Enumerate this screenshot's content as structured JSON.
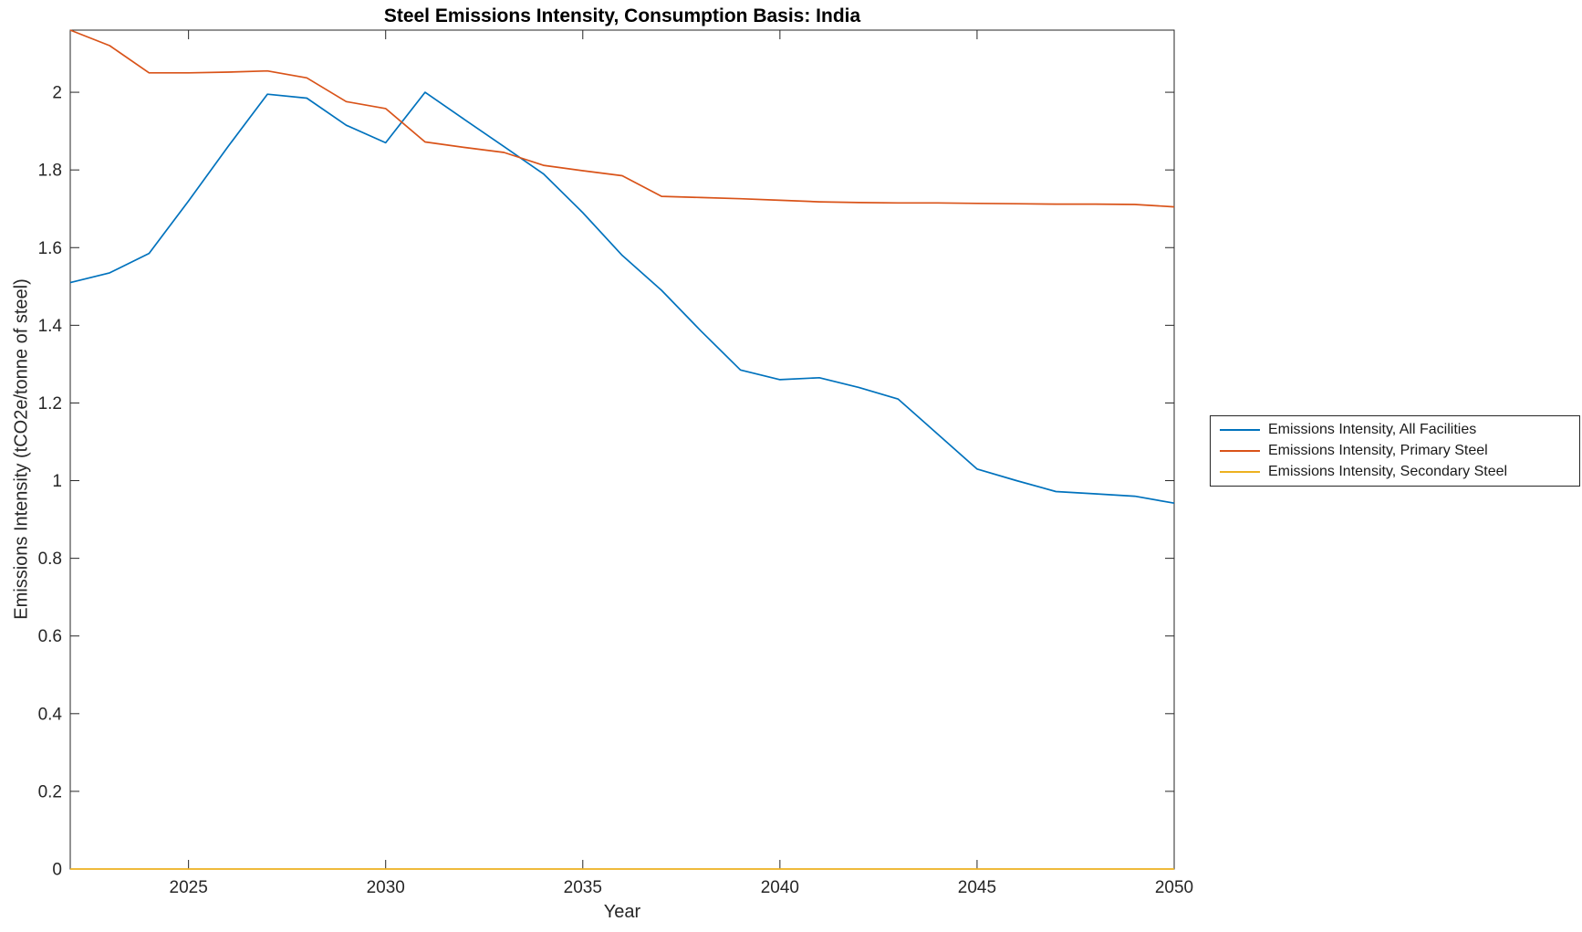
{
  "title": "Steel Emissions Intensity, Consumption Basis: India",
  "chart_data": {
    "type": "line",
    "title": "Steel Emissions Intensity, Consumption Basis: India",
    "xlabel": "Year",
    "ylabel": "Emissions Intensity (tCO2e/tonne of steel)",
    "xlim": [
      2022,
      2050
    ],
    "ylim": [
      0,
      2.16
    ],
    "xticks": [
      2025,
      2030,
      2035,
      2040,
      2045,
      2050
    ],
    "yticks": [
      0,
      0.2,
      0.4,
      0.6,
      0.8,
      1,
      1.2,
      1.4,
      1.6,
      1.8,
      2
    ],
    "grid": false,
    "legend_position": "outside-right",
    "axis_color": "#262626",
    "x": [
      2022,
      2023,
      2024,
      2025,
      2026,
      2027,
      2028,
      2029,
      2030,
      2031,
      2032,
      2033,
      2034,
      2035,
      2036,
      2037,
      2038,
      2039,
      2040,
      2041,
      2042,
      2043,
      2044,
      2045,
      2046,
      2047,
      2048,
      2049,
      2050
    ],
    "series": [
      {
        "name": "Emissions Intensity, All Facilities",
        "color": "#0072BD",
        "values": [
          1.51,
          1.535,
          1.585,
          1.72,
          1.86,
          1.995,
          1.985,
          1.915,
          1.87,
          2.0,
          1.93,
          1.86,
          1.79,
          1.69,
          1.58,
          1.49,
          1.385,
          1.285,
          1.26,
          1.265,
          1.24,
          1.21,
          1.12,
          1.03,
          1.0,
          0.972,
          0.966,
          0.96,
          0.942
        ]
      },
      {
        "name": "Emissions Intensity, Primary Steel",
        "color": "#D95319",
        "values": [
          2.16,
          2.12,
          2.05,
          2.05,
          2.052,
          2.055,
          2.037,
          1.976,
          1.958,
          1.872,
          1.858,
          1.845,
          1.812,
          1.798,
          1.785,
          1.732,
          1.729,
          1.726,
          1.722,
          1.718,
          1.716,
          1.715,
          1.715,
          1.714,
          1.713,
          1.712,
          1.712,
          1.711,
          1.705
        ]
      },
      {
        "name": "Emissions Intensity, Secondary Steel",
        "color": "#EDB120",
        "values": [
          0,
          0,
          0,
          0,
          0,
          0,
          0,
          0,
          0,
          0,
          0,
          0,
          0,
          0,
          0,
          0,
          0,
          0,
          0,
          0,
          0,
          0,
          0,
          0,
          0,
          0,
          0,
          0,
          0
        ]
      }
    ]
  }
}
